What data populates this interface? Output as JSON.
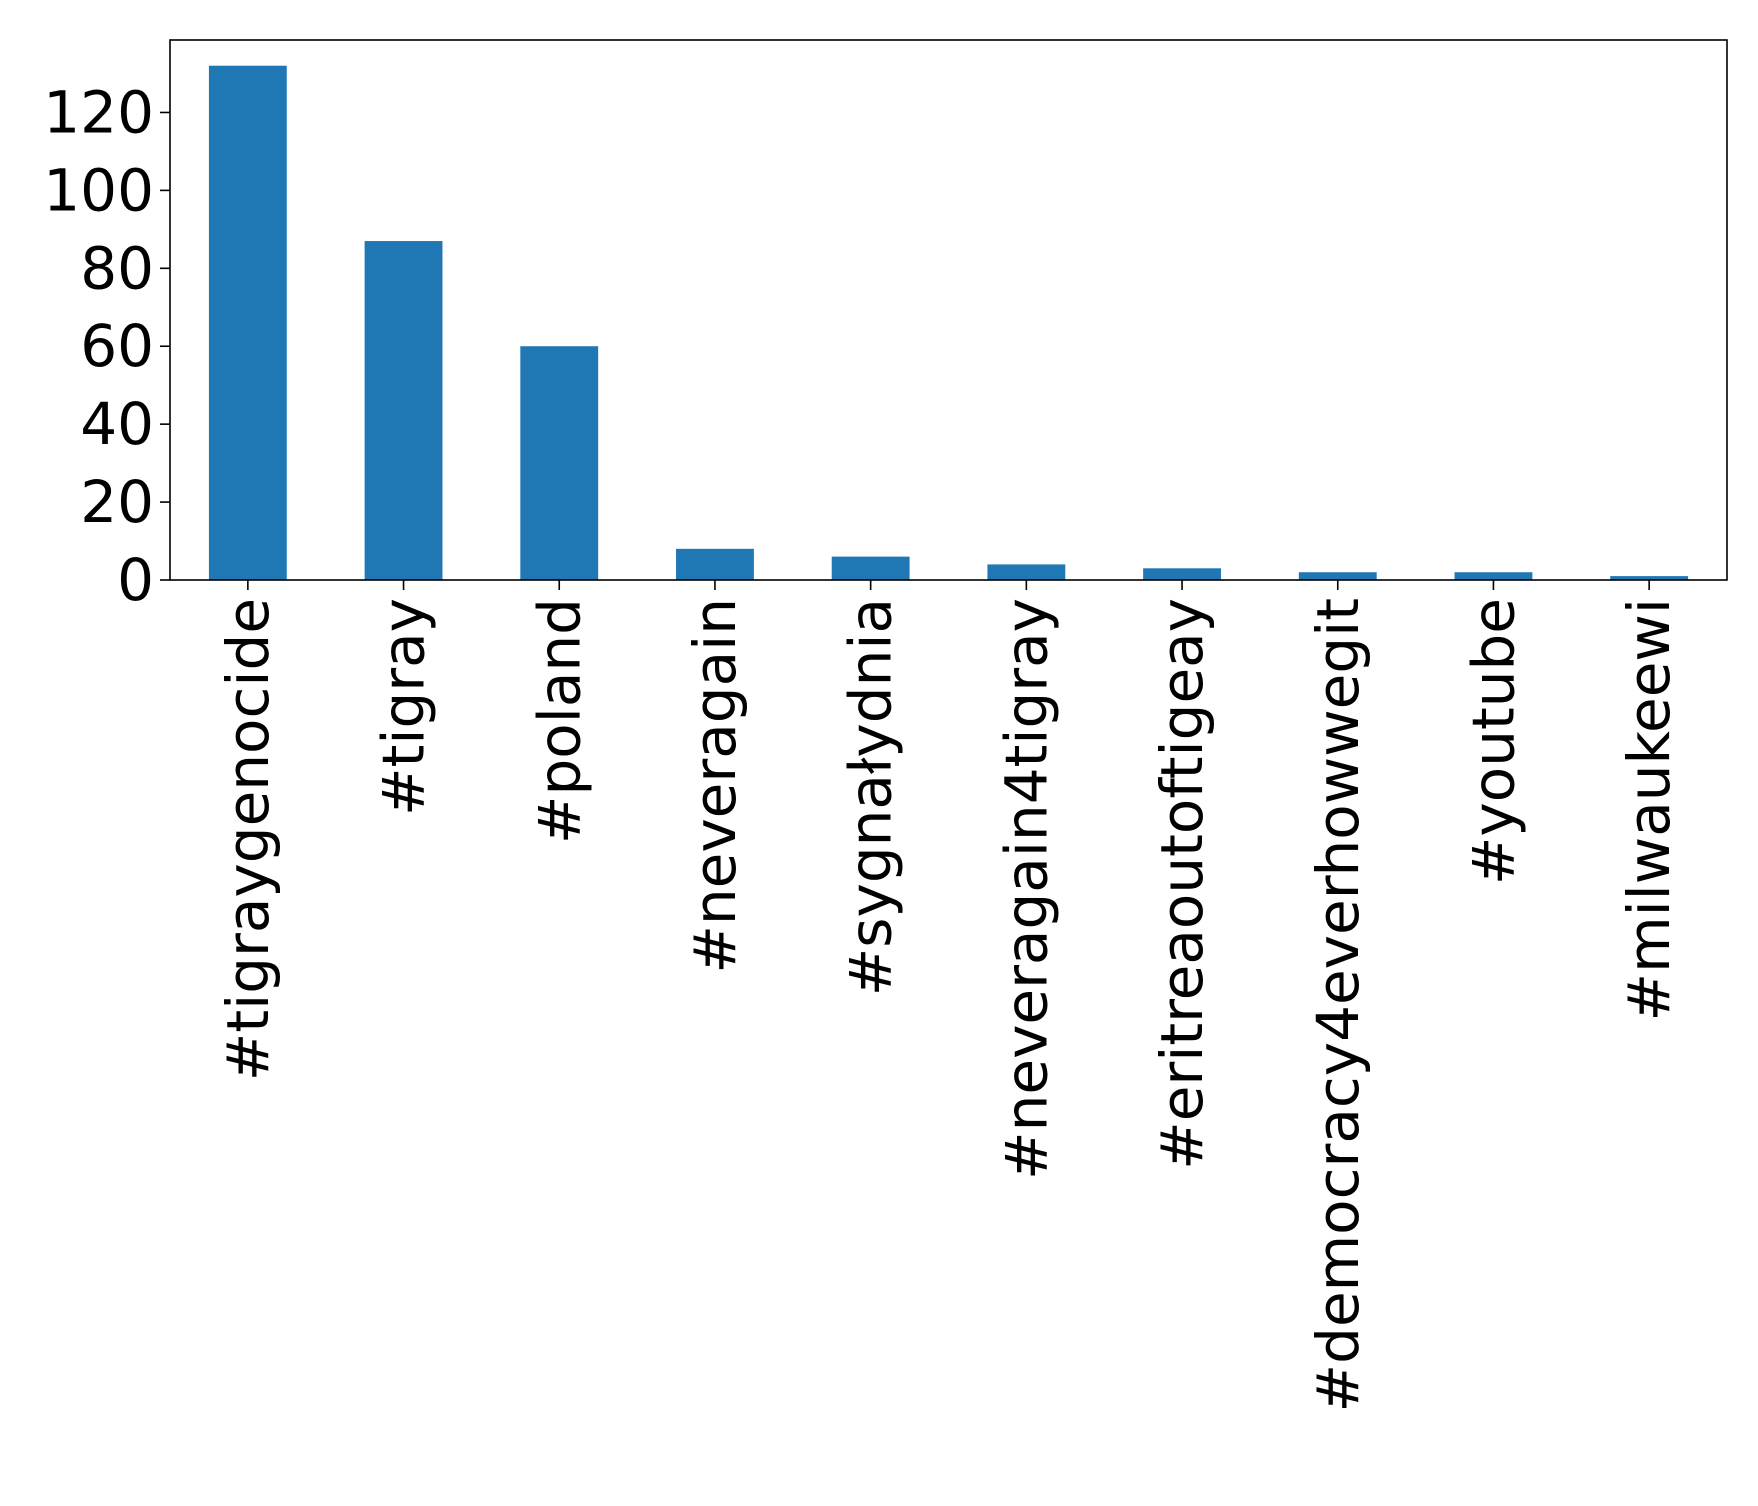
{
  "chart_data": {
    "type": "bar",
    "categories": [
      "#tigraygenocide",
      "#tigray",
      "#poland",
      "#neveragain",
      "#sygnałydnia",
      "#neveragain4tigray",
      "#eritreaoutoftigeay",
      "#democracy4everhowwegit",
      "#youtube",
      "#milwaukeewi"
    ],
    "values": [
      132,
      87,
      60,
      8,
      6,
      4,
      3,
      2,
      2,
      1
    ],
    "title": "",
    "xlabel": "",
    "ylabel": "",
    "ylim": [
      0,
      138.6
    ],
    "yticks": [
      0,
      20,
      40,
      60,
      80,
      100,
      120
    ],
    "grid": false,
    "legend": "none",
    "bar_color": "#1f77b4"
  }
}
